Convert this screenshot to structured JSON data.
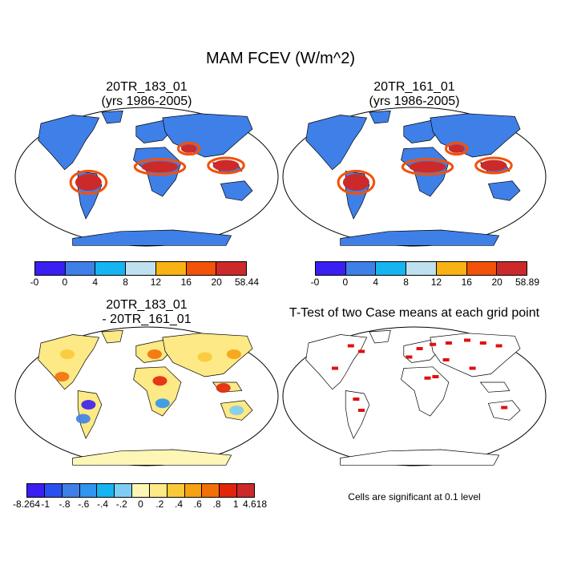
{
  "title": "MAM FCEV (W/m^2)",
  "panels": {
    "top_left": {
      "title_line1": "20TR_183_01",
      "title_line2": "(yrs 1986-2005)",
      "colorbar": {
        "colors": [
          "#3a1ff2",
          "#3f7fe8",
          "#16b4f0",
          "#bfe0ef",
          "#f7b214",
          "#f2520a",
          "#cc2a2a"
        ],
        "labels": [
          "-0",
          "0",
          "4",
          "8",
          "12",
          "16",
          "20",
          "58.44"
        ]
      }
    },
    "top_right": {
      "title_line1": "20TR_161_01",
      "title_line2": "(yrs 1986-2005)",
      "colorbar": {
        "colors": [
          "#3a1ff2",
          "#3f7fe8",
          "#16b4f0",
          "#bfe0ef",
          "#f7b214",
          "#f2520a",
          "#cc2a2a"
        ],
        "labels": [
          "-0",
          "0",
          "4",
          "8",
          "12",
          "16",
          "20",
          "58.89"
        ]
      }
    },
    "bottom_left": {
      "title_line1": "20TR_183_01",
      "title_line2": "- 20TR_161_01",
      "colorbar": {
        "colors": [
          "#3a1ff2",
          "#2a4ff0",
          "#3f7fe8",
          "#2f95ee",
          "#16b4f0",
          "#7fcdf2",
          "#fdf6b6",
          "#fde985",
          "#f9c93a",
          "#f7a114",
          "#f2700a",
          "#e2250a",
          "#cc2a2a"
        ],
        "labels": [
          "-8.264",
          "-1",
          "-.8",
          "-.6",
          "-.4",
          "-.2",
          "0",
          ".2",
          ".4",
          ".6",
          ".8",
          "1",
          "4.618"
        ]
      }
    },
    "bottom_right": {
      "title": "T-Test of two Case means at each grid point",
      "note": "Cells are significant at 0.1 level"
    }
  },
  "colors": {
    "ocean": "#ffffff",
    "coast": "#000000",
    "significance": "#e01010"
  }
}
